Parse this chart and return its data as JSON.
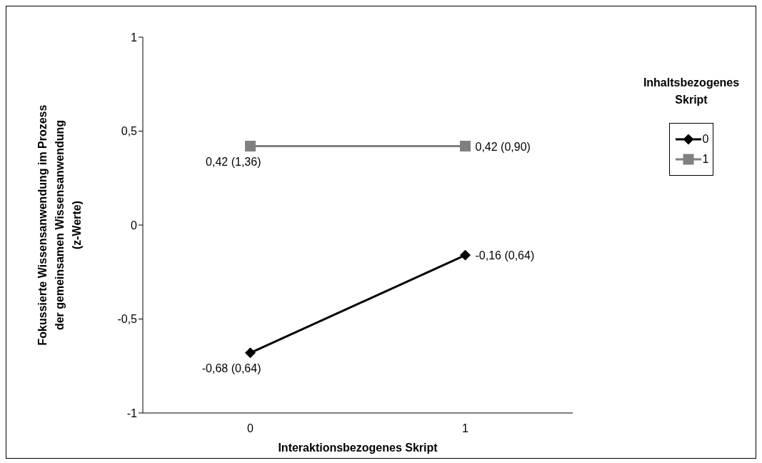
{
  "chart_data": {
    "type": "line",
    "xlabel": "Interaktionsbezogenes Skript",
    "ylabel": "Fokussierte Wissensanwendung im Prozess\nder gemeinsamen Wissensanwendung\n(z-Werte)",
    "legend_title": "Inhaltsbezogenes Skript",
    "categories": [
      "0",
      "1"
    ],
    "series": [
      {
        "name": "0",
        "color": "#000000",
        "marker": "diamond",
        "values": [
          -0.68,
          -0.16
        ],
        "value_labels": [
          "-0,68 (0,64)",
          "-0,16 (0,64)"
        ]
      },
      {
        "name": "1",
        "color": "#808080",
        "marker": "square",
        "values": [
          0.42,
          0.42
        ],
        "value_labels": [
          "0,42 (1,36)",
          "0,42 (0,90)"
        ]
      }
    ],
    "ylim": [
      -1,
      1
    ],
    "yticks": [
      {
        "value": -1,
        "label": "-1"
      },
      {
        "value": -0.5,
        "label": "-0,5"
      },
      {
        "value": 0,
        "label": "0"
      },
      {
        "value": 0.5,
        "label": "0,5"
      },
      {
        "value": 1,
        "label": "1"
      }
    ],
    "grid": false,
    "legend": "right"
  }
}
